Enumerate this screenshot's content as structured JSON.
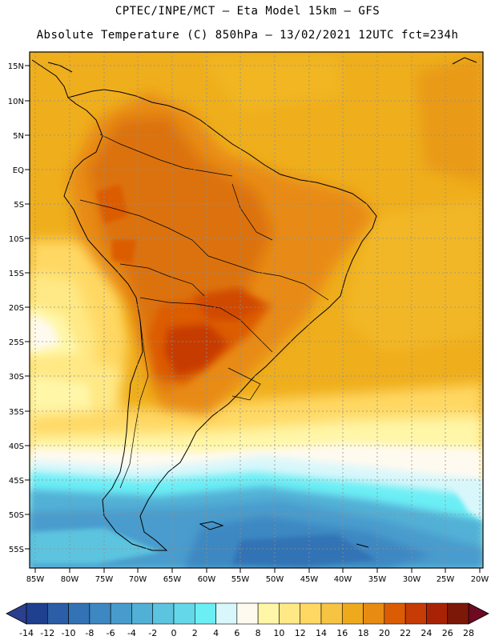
{
  "header": {
    "title_line1": "CPTEC/INPE/MCT —  Eta Model 15km — GFS",
    "title_line2": "Absolute Temperature (C) 850hPa — 13/02/2021 12UTC fct=234h"
  },
  "map": {
    "lat_labels": [
      "15N",
      "10N",
      "5N",
      "EQ",
      "5S",
      "10S",
      "15S",
      "20S",
      "25S",
      "30S",
      "35S",
      "40S",
      "45S",
      "50S",
      "55S"
    ],
    "lon_labels": [
      "85W",
      "80W",
      "75W",
      "70W",
      "65W",
      "60W",
      "55W",
      "50W",
      "45W",
      "40W",
      "35W",
      "30W",
      "25W",
      "20W"
    ]
  },
  "colorbar": {
    "labels": [
      "-14",
      "-12",
      "-10",
      "-8",
      "-6",
      "-4",
      "-2",
      "0",
      "2",
      "4",
      "6",
      "8",
      "10",
      "12",
      "14",
      "16",
      "18",
      "20",
      "22",
      "24",
      "26",
      "28"
    ],
    "colors": [
      "#1f3f8f",
      "#2a5ea6",
      "#3373b5",
      "#3d88c2",
      "#489ccd",
      "#52b0d6",
      "#5cc4df",
      "#64d8e8",
      "#6ceef5",
      "#d8f7fb",
      "#fffaf0",
      "#fff6a8",
      "#ffe986",
      "#ffd864",
      "#f5c443",
      "#efa91c",
      "#e88b12",
      "#dc5c06",
      "#c63b06",
      "#a82306",
      "#7b1808"
    ],
    "low_color": "#2c3f8e",
    "high_color": "#6e0a22"
  },
  "colors": {
    "frame": "#000000",
    "grid": "#8f8f8f",
    "border": "#000000"
  }
}
